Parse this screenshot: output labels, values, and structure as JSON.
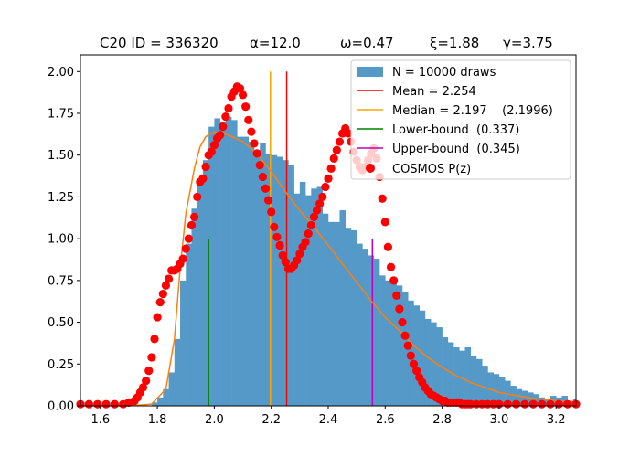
{
  "chart_data": {
    "type": "histogram",
    "title_parts": [
      "C20 ID = 336320",
      "α=12.0",
      "ω=0.47",
      "ξ=1.88",
      "γ=3.75"
    ],
    "xlabel": "",
    "ylabel": "",
    "xlim": [
      1.53,
      3.27
    ],
    "ylim": [
      0,
      2.1
    ],
    "xticks": [
      "1.6",
      "1.8",
      "2.0",
      "2.2",
      "2.4",
      "2.6",
      "2.8",
      "3.0",
      "3.2"
    ],
    "yticks": [
      "0.00",
      "0.25",
      "0.50",
      "0.75",
      "1.00",
      "1.25",
      "1.50",
      "1.75",
      "2.00"
    ],
    "legend_location": "top-right",
    "colors": {
      "histogram": "#5599c8",
      "mean": "#ff0000",
      "median": "#ffa500",
      "lower": "#008000",
      "upper": "#bf00bf",
      "cosmos": "#ff0000",
      "fit": "#ff7f0e"
    },
    "legend": [
      {
        "key": "hist",
        "label": "N = 10000 draws"
      },
      {
        "key": "mean",
        "label": "Mean = 2.254"
      },
      {
        "key": "median",
        "label": "Median = 2.197    (2.1996)"
      },
      {
        "key": "lower",
        "label": "Lower-bound  (0.337)"
      },
      {
        "key": "upper",
        "label": "Upper-bound  (0.345)"
      },
      {
        "key": "cosmos",
        "label": "COSMOS P(z)"
      }
    ],
    "histogram": {
      "bin_start": 1.78,
      "bin_width": 0.02,
      "heights": [
        0.02,
        0.05,
        0.1,
        0.2,
        0.4,
        0.75,
        0.97,
        1.18,
        1.35,
        1.47,
        1.67,
        1.72,
        1.7,
        1.73,
        1.71,
        1.61,
        1.61,
        1.58,
        1.53,
        1.57,
        1.51,
        1.5,
        1.49,
        1.47,
        1.44,
        1.27,
        1.34,
        1.26,
        1.3,
        1.31,
        1.15,
        1.1,
        1.1,
        1.17,
        1.06,
        1.05,
        0.97,
        0.94,
        0.9,
        0.88,
        0.78,
        0.75,
        0.76,
        0.72,
        0.68,
        0.63,
        0.6,
        0.57,
        0.52,
        0.5,
        0.47,
        0.41,
        0.38,
        0.35,
        0.33,
        0.35,
        0.3,
        0.28,
        0.24,
        0.2,
        0.19,
        0.17,
        0.15,
        0.12,
        0.1,
        0.09,
        0.08,
        0.07,
        0.05,
        0.04,
        0.06,
        0.05,
        0.06,
        0.03,
        0.04,
        0.02,
        0.03,
        0.02,
        0.01,
        0.01,
        0.02,
        0.01,
        0.01,
        0.01,
        0.01,
        0.0,
        0.01,
        0.0,
        0.01,
        0.01,
        0.05
      ]
    },
    "vlines": [
      {
        "key": "mean",
        "x": 2.254,
        "y_top": 2.0
      },
      {
        "key": "median",
        "x": 2.197,
        "y_top": 2.0
      },
      {
        "key": "lower",
        "x": 1.98,
        "y_top": 1.0
      },
      {
        "key": "upper",
        "x": 2.555,
        "y_top": 1.0
      }
    ],
    "fit_curve": {
      "x": [
        1.53,
        1.7,
        1.78,
        1.83,
        1.86,
        1.88,
        1.9,
        1.93,
        1.95,
        1.97,
        2.0,
        2.05,
        2.1,
        2.15,
        2.2,
        2.25,
        2.3,
        2.35,
        2.4,
        2.45,
        2.5,
        2.55,
        2.6,
        2.65,
        2.7,
        2.75,
        2.8,
        2.85,
        2.9,
        3.0,
        3.1,
        3.2,
        3.27
      ],
      "y": [
        0.0,
        0.0,
        0.01,
        0.1,
        0.4,
        0.82,
        1.15,
        1.42,
        1.55,
        1.61,
        1.64,
        1.62,
        1.58,
        1.51,
        1.4,
        1.28,
        1.17,
        1.07,
        0.96,
        0.85,
        0.74,
        0.63,
        0.53,
        0.45,
        0.36,
        0.29,
        0.23,
        0.18,
        0.14,
        0.08,
        0.05,
        0.03,
        0.02
      ]
    },
    "cosmos_pz": {
      "x": [
        1.53,
        1.56,
        1.59,
        1.62,
        1.65,
        1.68,
        1.7,
        1.72,
        1.73,
        1.74,
        1.75,
        1.76,
        1.77,
        1.78,
        1.79,
        1.8,
        1.81,
        1.82,
        1.83,
        1.84,
        1.85,
        1.86,
        1.87,
        1.88,
        1.89,
        1.9,
        1.91,
        1.92,
        1.93,
        1.94,
        1.95,
        1.96,
        1.97,
        1.98,
        1.99,
        2.0,
        2.01,
        2.02,
        2.03,
        2.04,
        2.05,
        2.06,
        2.07,
        2.08,
        2.09,
        2.1,
        2.11,
        2.12,
        2.13,
        2.14,
        2.15,
        2.16,
        2.17,
        2.18,
        2.19,
        2.2,
        2.21,
        2.22,
        2.23,
        2.24,
        2.25,
        2.26,
        2.27,
        2.28,
        2.29,
        2.3,
        2.31,
        2.32,
        2.33,
        2.34,
        2.35,
        2.36,
        2.37,
        2.38,
        2.39,
        2.4,
        2.41,
        2.42,
        2.43,
        2.44,
        2.45,
        2.46,
        2.47,
        2.48,
        2.49,
        2.5,
        2.51,
        2.52,
        2.53,
        2.54,
        2.55,
        2.56,
        2.57,
        2.58,
        2.59,
        2.6,
        2.61,
        2.62,
        2.63,
        2.64,
        2.65,
        2.66,
        2.67,
        2.68,
        2.69,
        2.7,
        2.71,
        2.72,
        2.73,
        2.74,
        2.75,
        2.76,
        2.77,
        2.78,
        2.79,
        2.8,
        2.81,
        2.82,
        2.83,
        2.84,
        2.85,
        2.86,
        2.87,
        2.88,
        2.89,
        2.9,
        2.92,
        2.94,
        2.96,
        2.98,
        3.0,
        3.03,
        3.06,
        3.09,
        3.12,
        3.15,
        3.18,
        3.21,
        3.24,
        3.27
      ],
      "y": [
        0.01,
        0.01,
        0.01,
        0.01,
        0.01,
        0.01,
        0.02,
        0.03,
        0.05,
        0.08,
        0.11,
        0.15,
        0.21,
        0.29,
        0.4,
        0.53,
        0.62,
        0.67,
        0.72,
        0.76,
        0.81,
        0.81,
        0.82,
        0.85,
        0.88,
        0.94,
        1.0,
        1.08,
        1.13,
        1.25,
        1.34,
        1.36,
        1.43,
        1.5,
        1.52,
        1.56,
        1.6,
        1.62,
        1.67,
        1.73,
        1.78,
        1.85,
        1.88,
        1.91,
        1.9,
        1.86,
        1.79,
        1.71,
        1.64,
        1.57,
        1.51,
        1.44,
        1.37,
        1.3,
        1.23,
        1.16,
        1.07,
        1.01,
        0.96,
        0.9,
        0.86,
        0.82,
        0.82,
        0.84,
        0.87,
        0.91,
        0.95,
        0.98,
        1.03,
        1.08,
        1.13,
        1.17,
        1.21,
        1.25,
        1.31,
        1.36,
        1.42,
        1.48,
        1.53,
        1.58,
        1.63,
        1.66,
        1.63,
        1.58,
        1.52,
        1.47,
        1.43,
        1.41,
        1.43,
        1.47,
        1.51,
        1.54,
        1.48,
        1.37,
        1.24,
        1.1,
        0.95,
        0.83,
        0.75,
        0.66,
        0.58,
        0.5,
        0.42,
        0.36,
        0.3,
        0.25,
        0.21,
        0.17,
        0.14,
        0.11,
        0.09,
        0.07,
        0.06,
        0.05,
        0.04,
        0.03,
        0.03,
        0.02,
        0.02,
        0.02,
        0.02,
        0.02,
        0.01,
        0.01,
        0.01,
        0.01,
        0.01,
        0.01,
        0.01,
        0.01,
        0.01,
        0.01,
        0.01,
        0.01,
        0.01,
        0.01,
        0.01,
        0.01,
        0.01,
        0.01
      ]
    }
  }
}
